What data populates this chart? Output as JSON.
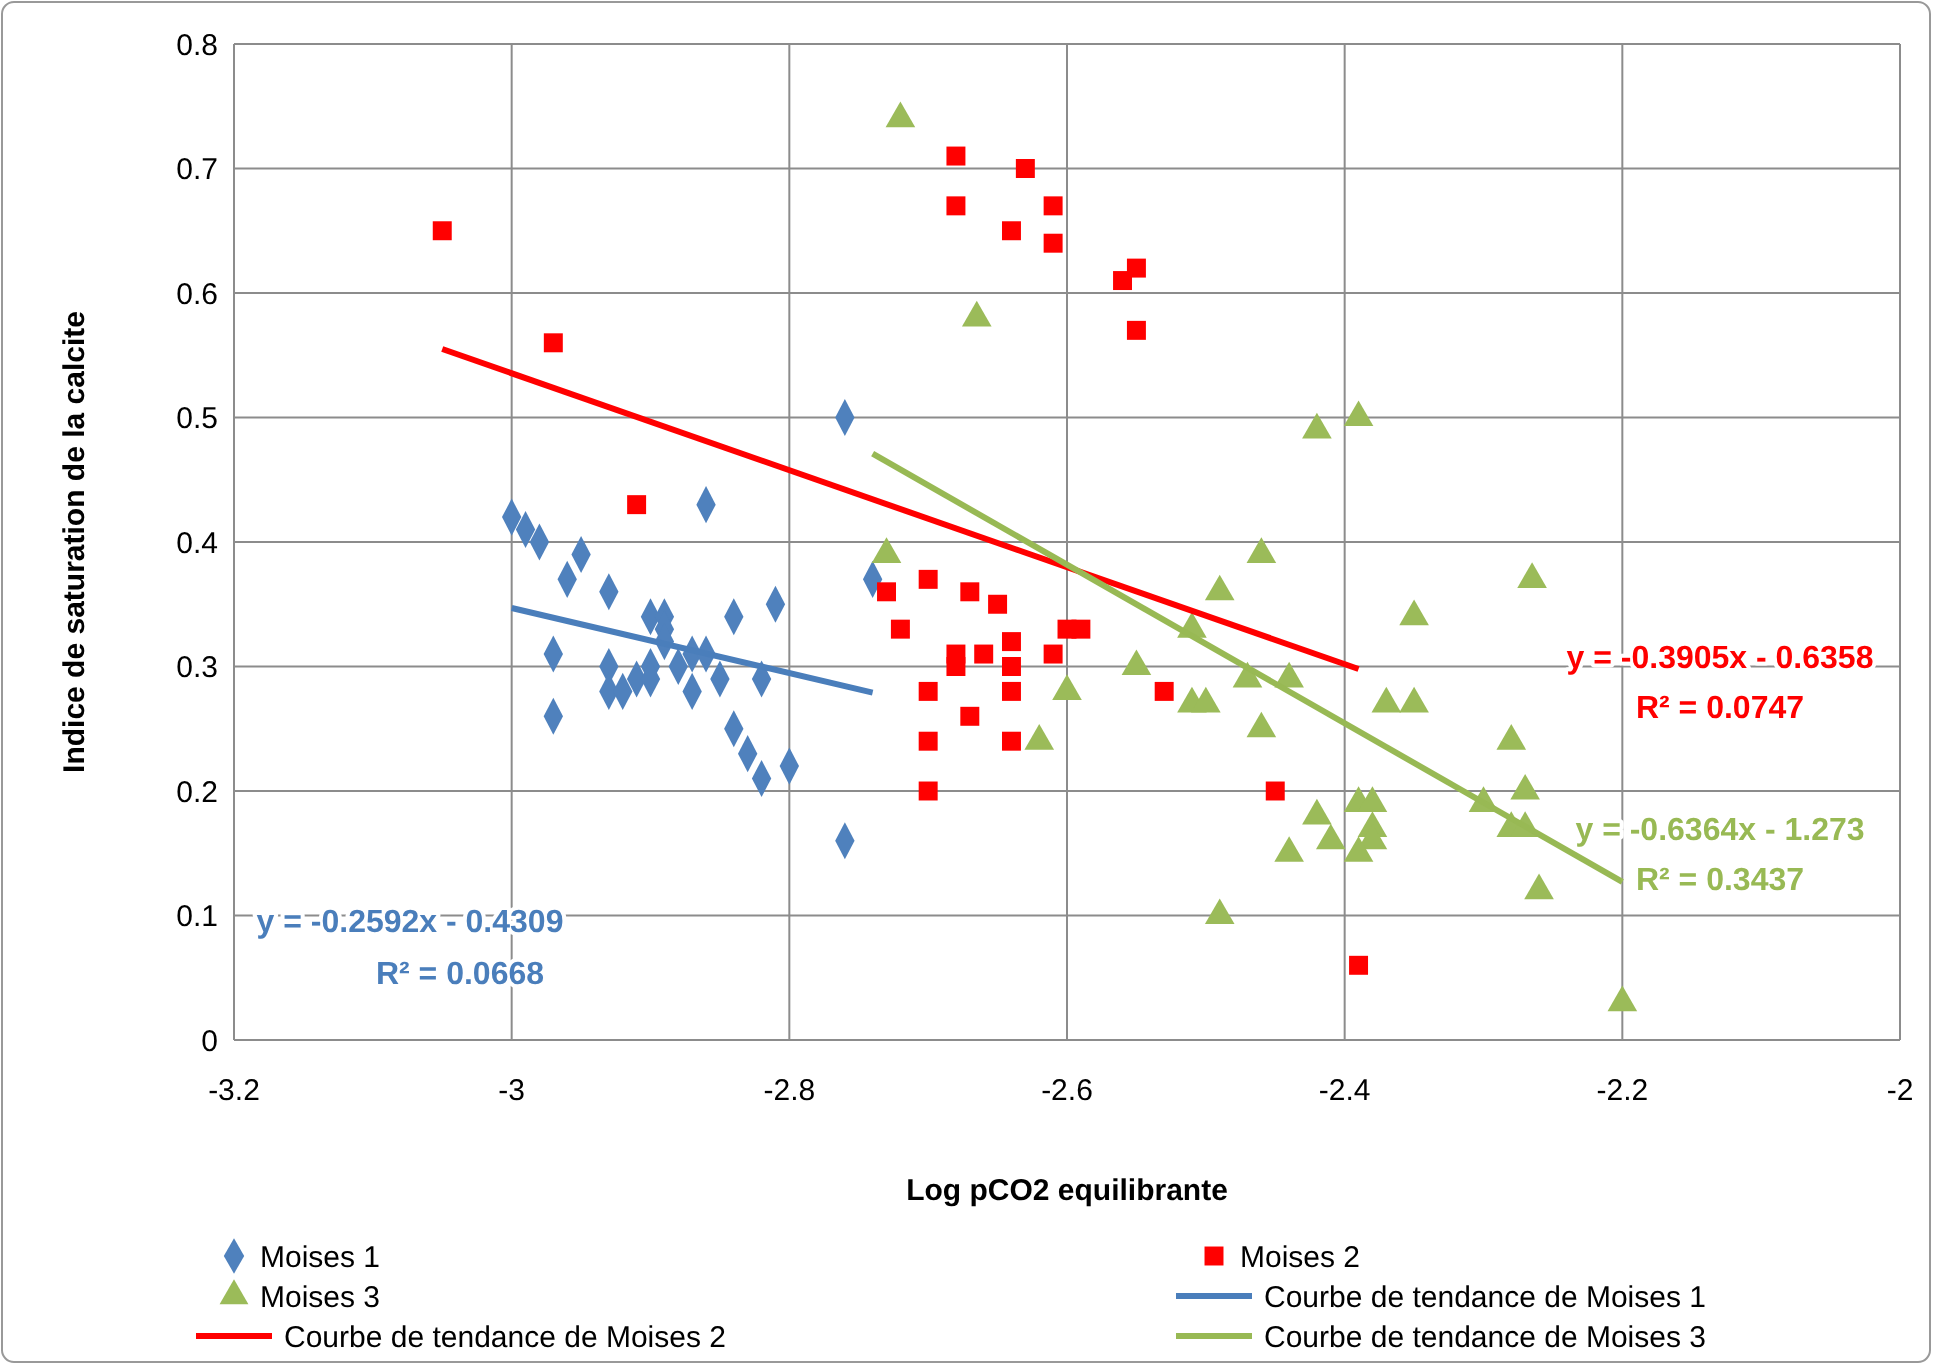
{
  "chart_data": {
    "type": "scatter",
    "xlabel": "Log pCO2 equilibrante",
    "ylabel": "Indice de saturation de la calcite",
    "xlim": [
      -3.2,
      -2
    ],
    "xticks": [
      -3.2,
      -3,
      -2.8,
      -2.6,
      -2.4,
      -2.2,
      -2
    ],
    "ylim": [
      0,
      0.8
    ],
    "yticks": [
      0,
      0.1,
      0.2,
      0.3,
      0.4,
      0.5,
      0.6,
      0.7,
      0.8
    ],
    "grid": true,
    "legend": "bottom",
    "series": [
      {
        "name": "Moises 1",
        "marker": "diamond",
        "color": "#4f81bd",
        "x": [
          -3.0,
          -2.99,
          -2.98,
          -2.95,
          -2.96,
          -2.93,
          -2.97,
          -2.97,
          -2.93,
          -2.93,
          -2.92,
          -2.91,
          -2.9,
          -2.9,
          -2.89,
          -2.89,
          -2.9,
          -2.87,
          -2.87,
          -2.86,
          -2.85,
          -2.84,
          -2.84,
          -2.83,
          -2.82,
          -2.82,
          -2.81,
          -2.8,
          -2.86,
          -2.76,
          -2.76,
          -2.74,
          -2.88,
          -2.89
        ],
        "values": [
          0.42,
          0.41,
          0.4,
          0.39,
          0.37,
          0.36,
          0.31,
          0.26,
          0.3,
          0.28,
          0.28,
          0.29,
          0.34,
          0.3,
          0.34,
          0.33,
          0.29,
          0.31,
          0.28,
          0.31,
          0.29,
          0.34,
          0.25,
          0.23,
          0.21,
          0.29,
          0.35,
          0.22,
          0.43,
          0.5,
          0.16,
          0.37,
          0.3,
          0.32
        ]
      },
      {
        "name": "Moises 2",
        "marker": "square",
        "color": "#ff0000",
        "x": [
          -3.05,
          -2.97,
          -2.91,
          -2.68,
          -2.68,
          -2.63,
          -2.64,
          -2.61,
          -2.61,
          -2.55,
          -2.56,
          -2.55,
          -2.73,
          -2.72,
          -2.7,
          -2.7,
          -2.7,
          -2.7,
          -2.67,
          -2.68,
          -2.68,
          -2.66,
          -2.65,
          -2.64,
          -2.64,
          -2.64,
          -2.64,
          -2.67,
          -2.6,
          -2.59,
          -2.61,
          -2.53,
          -2.45,
          -2.39
        ],
        "values": [
          0.65,
          0.56,
          0.43,
          0.71,
          0.67,
          0.7,
          0.65,
          0.67,
          0.64,
          0.62,
          0.61,
          0.57,
          0.36,
          0.33,
          0.37,
          0.28,
          0.24,
          0.2,
          0.36,
          0.31,
          0.3,
          0.31,
          0.35,
          0.32,
          0.3,
          0.28,
          0.24,
          0.26,
          0.33,
          0.33,
          0.31,
          0.28,
          0.2,
          0.06
        ]
      },
      {
        "name": "Moises 3",
        "marker": "triangle",
        "color": "#9bbb59",
        "x": [
          -2.72,
          -2.665,
          -2.73,
          -2.62,
          -2.6,
          -2.55,
          -2.51,
          -2.49,
          -2.51,
          -2.5,
          -2.47,
          -2.46,
          -2.46,
          -2.44,
          -2.44,
          -2.49,
          -2.42,
          -2.39,
          -2.42,
          -2.41,
          -2.39,
          -2.38,
          -2.38,
          -2.38,
          -2.39,
          -2.37,
          -2.35,
          -2.35,
          -2.3,
          -2.28,
          -2.28,
          -2.27,
          -2.27,
          -2.265,
          -2.26,
          -2.2
        ],
        "values": [
          0.74,
          0.58,
          0.39,
          0.24,
          0.28,
          0.3,
          0.33,
          0.36,
          0.27,
          0.27,
          0.29,
          0.39,
          0.25,
          0.29,
          0.15,
          0.1,
          0.49,
          0.5,
          0.18,
          0.16,
          0.19,
          0.19,
          0.17,
          0.16,
          0.15,
          0.27,
          0.27,
          0.34,
          0.19,
          0.24,
          0.17,
          0.2,
          0.17,
          0.37,
          0.12,
          0.03
        ]
      },
      {
        "name": "Courbe de tendance de Moises 1",
        "type": "line",
        "marker": "none",
        "line_style": "solid",
        "color": "#4a7ebb",
        "x": [
          -3.0,
          -2.74
        ],
        "values": [
          0.347,
          0.279
        ]
      },
      {
        "name": "Courbe de tendance de Moises 2",
        "type": "line",
        "marker": "none",
        "line_style": "solid",
        "color": "#ff0000",
        "x": [
          -3.05,
          -2.39
        ],
        "values": [
          0.555,
          0.298
        ]
      },
      {
        "name": "Courbe de tendance de Moises 3",
        "type": "line",
        "marker": "none",
        "line_style": "solid",
        "color": "#98b954",
        "x": [
          -2.74,
          -2.2
        ],
        "values": [
          0.471,
          0.127
        ]
      }
    ],
    "annotations": [
      "y = -0.2592x - 0.4309",
      "R² = 0.0668",
      "y = -0.3905x - 0.6358",
      "R² = 0.0747",
      "y = -0.6364x - 1.273",
      "R² = 0.3437"
    ]
  }
}
